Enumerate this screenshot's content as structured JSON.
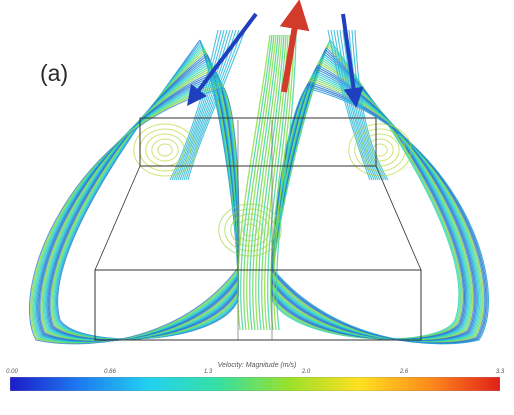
{
  "figure": {
    "panel_label": "(a)",
    "colorbar": {
      "title": "Velocity: Magnitude (m/s)",
      "ticks": [
        "0.00",
        "0.66",
        "1.3",
        "2.0",
        "2.6",
        "3.3"
      ],
      "stops": [
        "#1b1bc8",
        "#1e7bf0",
        "#22d2f0",
        "#37e0a0",
        "#9be02a",
        "#ffe020",
        "#ff8a1a",
        "#e0201a"
      ]
    },
    "arrows": [
      {
        "name": "inflow-arrow-left",
        "color": "#1f3fbf"
      },
      {
        "name": "outflow-arrow-center",
        "color": "#d23a2a"
      },
      {
        "name": "inflow-arrow-right",
        "color": "#1f3fbf"
      }
    ]
  }
}
